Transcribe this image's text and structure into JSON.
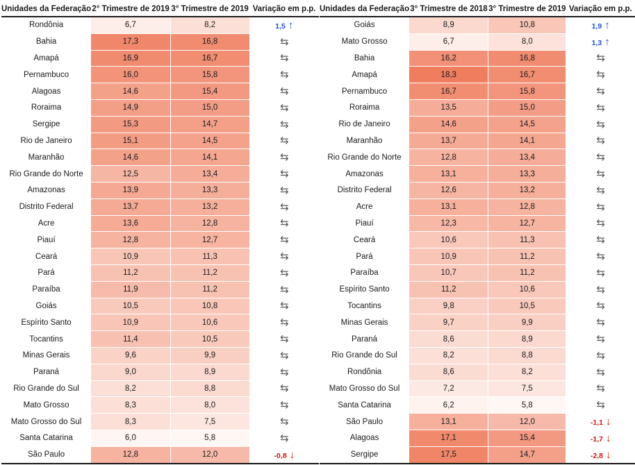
{
  "colors": {
    "up": "#1f4fd1",
    "down": "#d01010",
    "neutral": "#5a5a5a",
    "heat_low": "#fff7f4",
    "heat_high": "#ef7d5e"
  },
  "icons": {
    "up": "arrow-up-icon",
    "down": "arrow-down-icon",
    "neutral": "swap-arrows-icon"
  },
  "left_table": {
    "headers": [
      "Unidades da Federação",
      "2° Trimestre de 2019",
      "3° Trimestre de 2019",
      "Variação em p.p."
    ],
    "rows": [
      {
        "uf": "Rondônia",
        "a": "6,7",
        "b": "8,2",
        "trend": "up",
        "change": "1,5"
      },
      {
        "uf": "Bahia",
        "a": "17,3",
        "b": "16,8",
        "trend": "neutral",
        "change": ""
      },
      {
        "uf": "Amapá",
        "a": "16,9",
        "b": "16,7",
        "trend": "neutral",
        "change": ""
      },
      {
        "uf": "Pernambuco",
        "a": "16,0",
        "b": "15,8",
        "trend": "neutral",
        "change": ""
      },
      {
        "uf": "Alagoas",
        "a": "14,6",
        "b": "15,4",
        "trend": "neutral",
        "change": ""
      },
      {
        "uf": "Roraima",
        "a": "14,9",
        "b": "15,0",
        "trend": "neutral",
        "change": ""
      },
      {
        "uf": "Sergipe",
        "a": "15,3",
        "b": "14,7",
        "trend": "neutral",
        "change": ""
      },
      {
        "uf": "Rio de Janeiro",
        "a": "15,1",
        "b": "14,5",
        "trend": "neutral",
        "change": ""
      },
      {
        "uf": "Maranhão",
        "a": "14,6",
        "b": "14,1",
        "trend": "neutral",
        "change": ""
      },
      {
        "uf": "Rio Grande do Norte",
        "a": "12,5",
        "b": "13,4",
        "trend": "neutral",
        "change": ""
      },
      {
        "uf": "Amazonas",
        "a": "13,9",
        "b": "13,3",
        "trend": "neutral",
        "change": ""
      },
      {
        "uf": "Distrito Federal",
        "a": "13,7",
        "b": "13,2",
        "trend": "neutral",
        "change": ""
      },
      {
        "uf": "Acre",
        "a": "13,6",
        "b": "12,8",
        "trend": "neutral",
        "change": ""
      },
      {
        "uf": "Piauí",
        "a": "12,8",
        "b": "12,7",
        "trend": "neutral",
        "change": ""
      },
      {
        "uf": "Ceará",
        "a": "10,9",
        "b": "11,3",
        "trend": "neutral",
        "change": ""
      },
      {
        "uf": "Pará",
        "a": "11,2",
        "b": "11,2",
        "trend": "neutral",
        "change": ""
      },
      {
        "uf": "Paraíba",
        "a": "11,9",
        "b": "11,2",
        "trend": "neutral",
        "change": ""
      },
      {
        "uf": "Goiás",
        "a": "10,5",
        "b": "10,8",
        "trend": "neutral",
        "change": ""
      },
      {
        "uf": "Espírito Santo",
        "a": "10,9",
        "b": "10,6",
        "trend": "neutral",
        "change": ""
      },
      {
        "uf": "Tocantins",
        "a": "11,4",
        "b": "10,5",
        "trend": "neutral",
        "change": ""
      },
      {
        "uf": "Minas Gerais",
        "a": "9,6",
        "b": "9,9",
        "trend": "neutral",
        "change": ""
      },
      {
        "uf": "Paraná",
        "a": "9,0",
        "b": "8,9",
        "trend": "neutral",
        "change": ""
      },
      {
        "uf": "Rio Grande do Sul",
        "a": "8,2",
        "b": "8,8",
        "trend": "neutral",
        "change": ""
      },
      {
        "uf": "Mato Grosso",
        "a": "8,3",
        "b": "8,0",
        "trend": "neutral",
        "change": ""
      },
      {
        "uf": "Mato Grosso do Sul",
        "a": "8,3",
        "b": "7,5",
        "trend": "neutral",
        "change": ""
      },
      {
        "uf": "Santa Catarina",
        "a": "6,0",
        "b": "5,8",
        "trend": "neutral",
        "change": ""
      },
      {
        "uf": "São Paulo",
        "a": "12,8",
        "b": "12,0",
        "trend": "down",
        "change": "-0,8"
      }
    ]
  },
  "right_table": {
    "headers": [
      "Unidades da Federação",
      "3° Trimestre de 2018",
      "3° Trimestre de 2019",
      "Variação em p.p."
    ],
    "rows": [
      {
        "uf": "Goiás",
        "a": "8,9",
        "b": "10,8",
        "trend": "up",
        "change": "1,9"
      },
      {
        "uf": "Mato Grosso",
        "a": "6,7",
        "b": "8,0",
        "trend": "up",
        "change": "1,3"
      },
      {
        "uf": "Bahia",
        "a": "16,2",
        "b": "16,8",
        "trend": "neutral",
        "change": ""
      },
      {
        "uf": "Amapá",
        "a": "18,3",
        "b": "16,7",
        "trend": "neutral",
        "change": ""
      },
      {
        "uf": "Pernambuco",
        "a": "16,7",
        "b": "15,8",
        "trend": "neutral",
        "change": ""
      },
      {
        "uf": "Roraima",
        "a": "13,5",
        "b": "15,0",
        "trend": "neutral",
        "change": ""
      },
      {
        "uf": "Rio de Janeiro",
        "a": "14,6",
        "b": "14,5",
        "trend": "neutral",
        "change": ""
      },
      {
        "uf": "Maranhão",
        "a": "13,7",
        "b": "14,1",
        "trend": "neutral",
        "change": ""
      },
      {
        "uf": "Rio Grande do Norte",
        "a": "12,8",
        "b": "13,4",
        "trend": "neutral",
        "change": ""
      },
      {
        "uf": "Amazonas",
        "a": "13,1",
        "b": "13,3",
        "trend": "neutral",
        "change": ""
      },
      {
        "uf": "Distrito Federal",
        "a": "12,6",
        "b": "13,2",
        "trend": "neutral",
        "change": ""
      },
      {
        "uf": "Acre",
        "a": "13,1",
        "b": "12,8",
        "trend": "neutral",
        "change": ""
      },
      {
        "uf": "Piauí",
        "a": "12,3",
        "b": "12,7",
        "trend": "neutral",
        "change": ""
      },
      {
        "uf": "Ceará",
        "a": "10,6",
        "b": "11,3",
        "trend": "neutral",
        "change": ""
      },
      {
        "uf": "Pará",
        "a": "10,9",
        "b": "11,2",
        "trend": "neutral",
        "change": ""
      },
      {
        "uf": "Paraíba",
        "a": "10,7",
        "b": "11,2",
        "trend": "neutral",
        "change": ""
      },
      {
        "uf": "Espírito Santo",
        "a": "11,2",
        "b": "10,6",
        "trend": "neutral",
        "change": ""
      },
      {
        "uf": "Tocantins",
        "a": "9,8",
        "b": "10,5",
        "trend": "neutral",
        "change": ""
      },
      {
        "uf": "Minas Gerais",
        "a": "9,7",
        "b": "9,9",
        "trend": "neutral",
        "change": ""
      },
      {
        "uf": "Paraná",
        "a": "8,6",
        "b": "8,9",
        "trend": "neutral",
        "change": ""
      },
      {
        "uf": "Rio Grande do Sul",
        "a": "8,2",
        "b": "8,8",
        "trend": "neutral",
        "change": ""
      },
      {
        "uf": "Rondônia",
        "a": "8,6",
        "b": "8,2",
        "trend": "neutral",
        "change": ""
      },
      {
        "uf": "Mato Grosso do Sul",
        "a": "7,2",
        "b": "7,5",
        "trend": "neutral",
        "change": ""
      },
      {
        "uf": "Santa Catarina",
        "a": "6,2",
        "b": "5,8",
        "trend": "neutral",
        "change": ""
      },
      {
        "uf": "São Paulo",
        "a": "13,1",
        "b": "12,0",
        "trend": "down",
        "change": "-1,1"
      },
      {
        "uf": "Alagoas",
        "a": "17,1",
        "b": "15,4",
        "trend": "down",
        "change": "-1,7"
      },
      {
        "uf": "Sergipe",
        "a": "17,5",
        "b": "14,7",
        "trend": "down",
        "change": "-2,8"
      }
    ]
  }
}
